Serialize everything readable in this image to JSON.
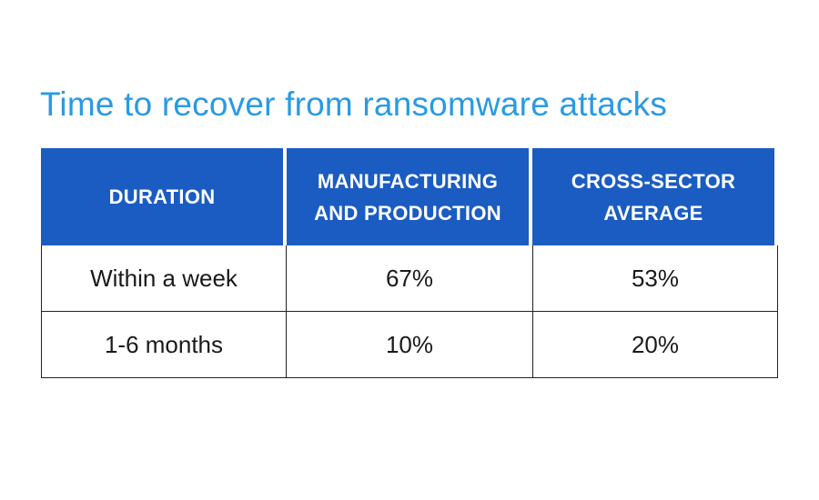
{
  "chart_data": {
    "type": "table",
    "title": "Time to recover from ransomware attacks",
    "columns": [
      "DURATION",
      "MANUFACTURING\nAND PRODUCTION",
      "CROSS-SECTOR\nAVERAGE"
    ],
    "rows": [
      [
        "Within a week",
        "67%",
        "53%"
      ],
      [
        "1-6 months",
        "10%",
        "20%"
      ]
    ]
  },
  "colors": {
    "title": "#2a9ae3",
    "header_bg": "#1b5cc3",
    "header_text": "#ffffff",
    "cell_text": "#1a1a1a",
    "border": "#222222"
  }
}
